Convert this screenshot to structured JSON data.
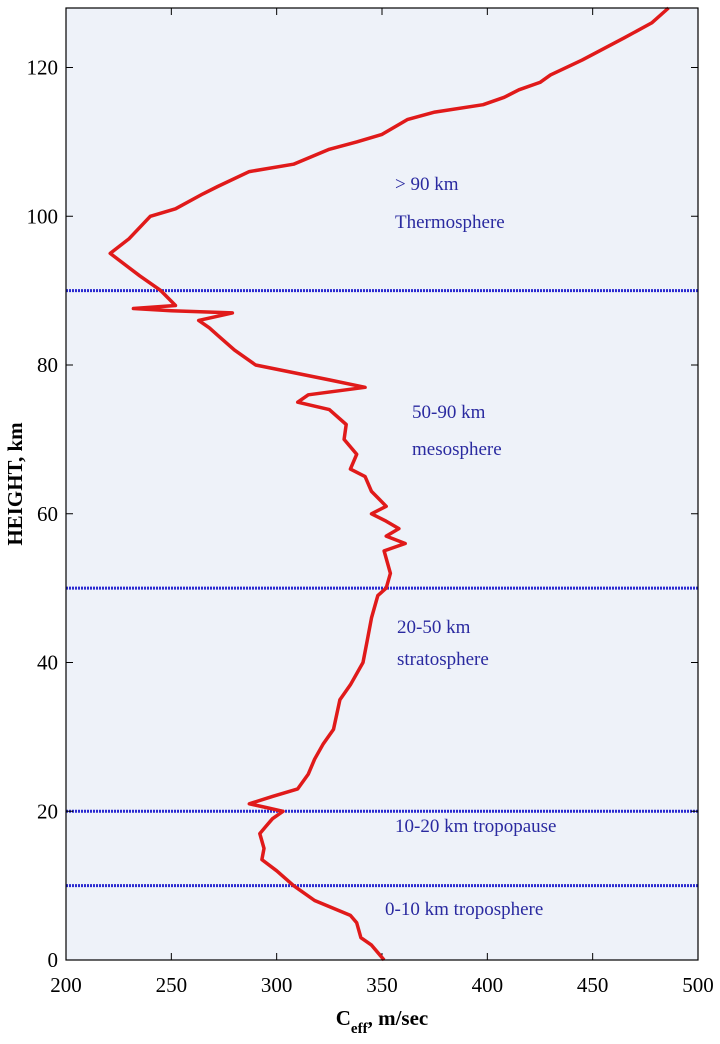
{
  "chart_data": {
    "type": "line",
    "x_label": {
      "main": "C",
      "sub": "eff",
      "rest": ", m/sec"
    },
    "y_label": "HEIGHT, km",
    "xlim": [
      200,
      500
    ],
    "xticks": [
      200,
      250,
      300,
      350,
      400,
      450,
      500
    ],
    "ylim": [
      0,
      128
    ],
    "yticks": [
      0,
      20,
      40,
      60,
      80,
      100,
      120
    ],
    "background": "#eef2f9",
    "series": [
      {
        "color": "#e01a1a",
        "x": [
          351,
          345,
          340,
          338,
          335,
          318,
          308,
          300,
          293,
          294,
          292,
          295,
          298,
          303,
          295,
          287,
          298,
          310,
          315,
          318,
          322,
          327,
          330,
          335,
          341,
          343,
          345,
          348,
          352,
          354,
          351,
          361,
          352,
          358,
          352,
          345,
          352,
          345,
          342,
          335,
          338,
          332,
          333,
          325,
          310,
          315,
          342,
          325,
          290,
          280,
          272,
          268,
          263,
          279,
          250,
          232,
          252,
          245,
          235,
          221,
          230,
          240,
          252,
          265,
          272,
          287,
          308,
          325,
          338,
          350,
          362,
          375,
          398,
          408,
          415,
          425,
          430,
          445,
          465,
          478,
          486
        ],
        "y": [
          0,
          2,
          3,
          5,
          6,
          8,
          10,
          12,
          13.5,
          15,
          17,
          18,
          19,
          20,
          20.5,
          21,
          22,
          23,
          25,
          27,
          29,
          31,
          35,
          37,
          40,
          43,
          46,
          49,
          50,
          52,
          55,
          56,
          57,
          58,
          59,
          60,
          61,
          63,
          65,
          66,
          68,
          70,
          72,
          74,
          75,
          76,
          77,
          78,
          80,
          82,
          84,
          85,
          86,
          87,
          87.3,
          87.6,
          88,
          90,
          92,
          95,
          97,
          100,
          101,
          103,
          104,
          106,
          107,
          109,
          110,
          111,
          113,
          114,
          115,
          116,
          117,
          118,
          119,
          121,
          124,
          126,
          128
        ]
      }
    ],
    "reference_lines": {
      "color": "#2a2ad0",
      "values": [
        90,
        50,
        20,
        10
      ]
    },
    "annotations": [
      {
        "lines": [
          "> 90 km",
          "Thermosphere"
        ]
      },
      {
        "lines": [
          "50-90 km",
          "mesosphere"
        ]
      },
      {
        "lines": [
          "20-50 km",
          "stratosphere"
        ]
      },
      {
        "lines": [
          "10-20 km tropopause"
        ]
      },
      {
        "lines": [
          "0-10 km troposphere"
        ]
      }
    ],
    "annotation_color": "#2a2aa0"
  }
}
